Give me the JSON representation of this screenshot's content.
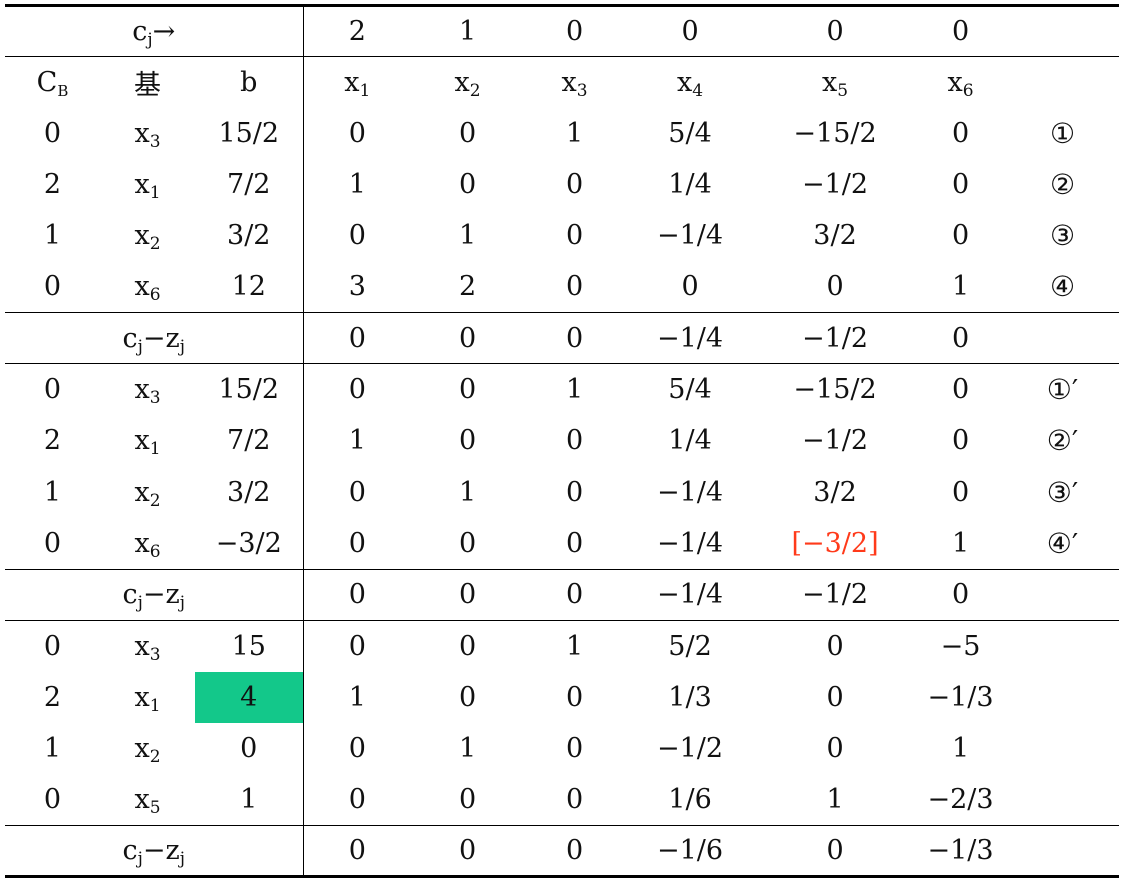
{
  "simplex_table": {
    "header": {
      "cj_label": {
        "base": "c",
        "sub": "j",
        "arrow": "→"
      },
      "cj_values": [
        "2",
        "1",
        "0",
        "0",
        "0",
        "0"
      ]
    },
    "column_headers": {
      "cb": {
        "base": "C",
        "sub": "B"
      },
      "basis": "基",
      "b": "b",
      "vars": [
        {
          "base": "x",
          "sub": "1"
        },
        {
          "base": "x",
          "sub": "2"
        },
        {
          "base": "x",
          "sub": "3"
        },
        {
          "base": "x",
          "sub": "4"
        },
        {
          "base": "x",
          "sub": "5"
        },
        {
          "base": "x",
          "sub": "6"
        }
      ]
    },
    "rows": [
      {
        "type": "data",
        "cb": "0",
        "basis": {
          "base": "x",
          "sub": "3"
        },
        "b": "15/2",
        "cells": [
          "0",
          "0",
          "1",
          "5/4",
          "−15/2",
          "0"
        ],
        "marker": "①"
      },
      {
        "type": "data",
        "cb": "2",
        "basis": {
          "base": "x",
          "sub": "1"
        },
        "b": "7/2",
        "cells": [
          "1",
          "0",
          "0",
          "1/4",
          "−1/2",
          "0"
        ],
        "marker": "②"
      },
      {
        "type": "data",
        "cb": "1",
        "basis": {
          "base": "x",
          "sub": "2"
        },
        "b": "3/2",
        "cells": [
          "0",
          "1",
          "0",
          "−1/4",
          "3/2",
          "0"
        ],
        "marker": "③"
      },
      {
        "type": "data",
        "cb": "0",
        "basis": {
          "base": "x",
          "sub": "6"
        },
        "b": "12",
        "cells": [
          "3",
          "2",
          "0",
          "0",
          "0",
          "1"
        ],
        "marker": "④"
      },
      {
        "type": "cz",
        "label": {
          "c": "c",
          "j1": "j",
          "minus": "−",
          "z": "z",
          "j2": "j"
        },
        "cells": [
          "0",
          "0",
          "0",
          "−1/4",
          "−1/2",
          "0"
        ]
      },
      {
        "type": "data",
        "cb": "0",
        "basis": {
          "base": "x",
          "sub": "3"
        },
        "b": "15/2",
        "cells": [
          "0",
          "0",
          "1",
          "5/4",
          "−15/2",
          "0"
        ],
        "marker": "①′"
      },
      {
        "type": "data",
        "cb": "2",
        "basis": {
          "base": "x",
          "sub": "1"
        },
        "b": "7/2",
        "cells": [
          "1",
          "0",
          "0",
          "1/4",
          "−1/2",
          "0"
        ],
        "marker": "②′"
      },
      {
        "type": "data",
        "cb": "1",
        "basis": {
          "base": "x",
          "sub": "2"
        },
        "b": "3/2",
        "cells": [
          "0",
          "1",
          "0",
          "−1/4",
          "3/2",
          "0"
        ],
        "marker": "③′"
      },
      {
        "type": "data",
        "cb": "0",
        "basis": {
          "base": "x",
          "sub": "6"
        },
        "b": "−3/2",
        "cells": [
          "0",
          "0",
          "0",
          "−1/4",
          "[−3/2]",
          "1"
        ],
        "marker": "④′",
        "pivot_index": 4
      },
      {
        "type": "cz",
        "label": {
          "c": "c",
          "j1": "j",
          "minus": "−",
          "z": "z",
          "j2": "j"
        },
        "cells": [
          "0",
          "0",
          "0",
          "−1/4",
          "−1/2",
          "0"
        ]
      },
      {
        "type": "data",
        "cb": "0",
        "basis": {
          "base": "x",
          "sub": "3"
        },
        "b": "15",
        "cells": [
          "0",
          "0",
          "1",
          "5/2",
          "0",
          "−5"
        ],
        "marker": ""
      },
      {
        "type": "data",
        "cb": "2",
        "basis": {
          "base": "x",
          "sub": "1"
        },
        "b": "4",
        "cells": [
          "1",
          "0",
          "0",
          "1/3",
          "0",
          "−1/3"
        ],
        "marker": "",
        "highlight_b": true
      },
      {
        "type": "data",
        "cb": "1",
        "basis": {
          "base": "x",
          "sub": "2"
        },
        "b": "0",
        "cells": [
          "0",
          "1",
          "0",
          "−1/2",
          "0",
          "1"
        ],
        "marker": ""
      },
      {
        "type": "data",
        "cb": "0",
        "basis": {
          "base": "x",
          "sub": "5"
        },
        "b": "1",
        "cells": [
          "0",
          "0",
          "0",
          "1/6",
          "1",
          "−2/3"
        ],
        "marker": ""
      },
      {
        "type": "cz",
        "label": {
          "c": "c",
          "j1": "j",
          "minus": "−",
          "z": "z",
          "j2": "j"
        },
        "cells": [
          "0",
          "0",
          "0",
          "−1/6",
          "0",
          "−1/3"
        ]
      }
    ],
    "colors": {
      "pivot_text": "#ff3a1a",
      "highlight_fill": "#13c88a",
      "rule": "#000000"
    }
  }
}
